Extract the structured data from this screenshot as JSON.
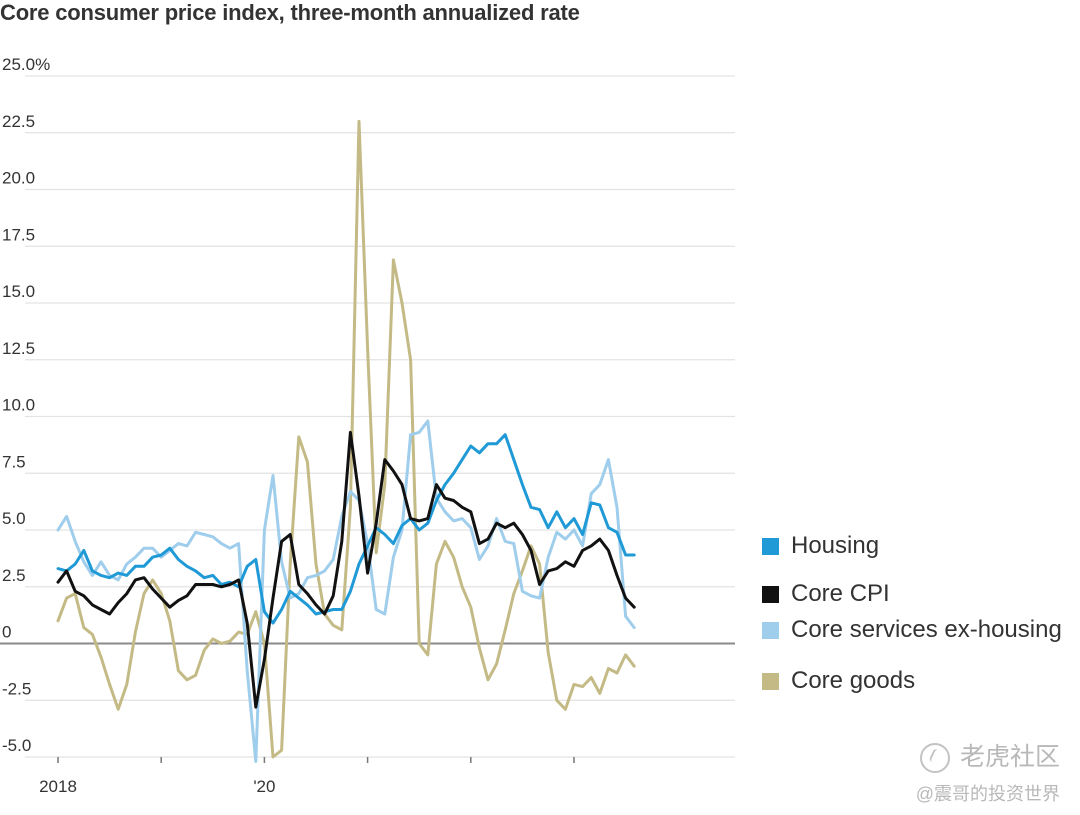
{
  "chart_data": {
    "type": "line",
    "title": "Core consumer price index, three-month annualized rate",
    "ylim": [
      -5,
      25
    ],
    "yticks": [
      25.0,
      22.5,
      20.0,
      17.5,
      15.0,
      12.5,
      10.0,
      7.5,
      5.0,
      2.5,
      0,
      -2.5,
      -5.0
    ],
    "ytick_labels": [
      "25.0%",
      "22.5",
      "20.0",
      "17.5",
      "15.0",
      "12.5",
      "10.0",
      "7.5",
      "5.0",
      "2.5",
      "0",
      "-2.5",
      "-5.0"
    ],
    "x_start": "2018-01",
    "x_end": "2023-04",
    "xtick_labels": [
      {
        "x": "2018-01",
        "label": "2018"
      },
      {
        "x": "2020-01",
        "label": "'20"
      }
    ],
    "xticks": [
      "2018-01",
      "2019-01",
      "2020-01",
      "2021-01",
      "2022-01",
      "2023-01"
    ],
    "zero_line": true,
    "grid": true,
    "legend_position": "right",
    "series": [
      {
        "name": "Housing",
        "color": "#1f9ad6",
        "start": "2018-01",
        "values": [
          3.3,
          3.2,
          3.5,
          4.1,
          3.2,
          3.0,
          2.9,
          3.1,
          3.0,
          3.4,
          3.4,
          3.8,
          3.9,
          4.2,
          3.7,
          3.4,
          3.2,
          2.9,
          3.0,
          2.6,
          2.7,
          2.5,
          3.4,
          3.7,
          1.4,
          0.9,
          1.5,
          2.3,
          2.0,
          1.7,
          1.3,
          1.4,
          1.5,
          1.5,
          2.3,
          3.5,
          4.3,
          5.1,
          4.8,
          4.4,
          5.2,
          5.5,
          5.0,
          5.3,
          6.3,
          7.0,
          7.5,
          8.1,
          8.7,
          8.4,
          8.8,
          8.8,
          9.2,
          8.1,
          7.0,
          6.0,
          5.9,
          5.1,
          5.8,
          5.1,
          5.5,
          4.8,
          6.2,
          6.1,
          5.1,
          4.9,
          3.9,
          3.9
        ]
      },
      {
        "name": "Core CPI",
        "color": "#111111",
        "start": "2018-01",
        "values": [
          2.7,
          3.2,
          2.3,
          2.1,
          1.7,
          1.5,
          1.3,
          1.8,
          2.2,
          2.8,
          2.9,
          2.4,
          2.0,
          1.6,
          1.9,
          2.1,
          2.6,
          2.6,
          2.6,
          2.5,
          2.6,
          2.8,
          0.9,
          -2.8,
          -0.7,
          2.0,
          4.5,
          4.8,
          2.6,
          2.2,
          1.7,
          1.3,
          2.1,
          4.5,
          9.3,
          6.5,
          3.1,
          5.3,
          8.1,
          7.6,
          7.0,
          5.5,
          5.4,
          5.5,
          7.0,
          6.4,
          6.3,
          6.0,
          5.8,
          4.4,
          4.6,
          5.3,
          5.1,
          5.3,
          4.8,
          4.1,
          2.6,
          3.2,
          3.3,
          3.6,
          3.4,
          4.1,
          4.3,
          4.6,
          4.1,
          3.0,
          2.0,
          1.6
        ]
      },
      {
        "name": "Core services ex-housing",
        "color": "#9fcdec",
        "start": "2018-01",
        "values": [
          5.0,
          5.6,
          4.5,
          3.6,
          3.0,
          3.6,
          3.0,
          2.8,
          3.5,
          3.8,
          4.2,
          4.2,
          3.8,
          4.1,
          4.4,
          4.3,
          4.9,
          4.8,
          4.7,
          4.4,
          4.2,
          4.4,
          -1.2,
          -5.2,
          5.0,
          7.4,
          3.6,
          2.0,
          2.2,
          2.9,
          3.0,
          3.2,
          3.7,
          5.6,
          6.7,
          6.3,
          4.4,
          1.5,
          1.3,
          3.8,
          5.0,
          9.2,
          9.3,
          9.8,
          6.4,
          5.8,
          5.4,
          5.5,
          5.1,
          3.7,
          4.3,
          5.5,
          4.5,
          4.4,
          2.3,
          2.1,
          2.0,
          3.8,
          4.9,
          4.6,
          5.0,
          4.3,
          6.6,
          7.0,
          8.1,
          6.0,
          1.2,
          0.7
        ]
      },
      {
        "name": "Core goods",
        "color": "#c4ba86",
        "start": "2018-01",
        "values": [
          1.0,
          2.0,
          2.2,
          0.7,
          0.4,
          -0.6,
          -1.8,
          -2.9,
          -1.8,
          0.5,
          2.2,
          2.8,
          2.2,
          1.0,
          -1.2,
          -1.6,
          -1.4,
          -0.3,
          0.2,
          0.0,
          0.1,
          0.5,
          0.4,
          1.4,
          0.0,
          -5.0,
          -4.7,
          3.5,
          9.1,
          8.0,
          3.5,
          1.3,
          0.8,
          0.6,
          6.0,
          23.0,
          13.0,
          4.0,
          7.0,
          16.9,
          15.0,
          12.5,
          0.0,
          -0.5,
          3.5,
          4.5,
          3.8,
          2.5,
          1.6,
          -0.2,
          -1.6,
          -0.9,
          0.6,
          2.2,
          3.2,
          4.3,
          3.5,
          -0.4,
          -2.5,
          -2.9,
          -1.8,
          -1.9,
          -1.5,
          -2.2,
          -1.1,
          -1.3,
          -0.5,
          -1.0
        ]
      }
    ]
  },
  "watermark": {
    "logo_text": "老虎社区",
    "handle": "@震哥的投资世界"
  }
}
